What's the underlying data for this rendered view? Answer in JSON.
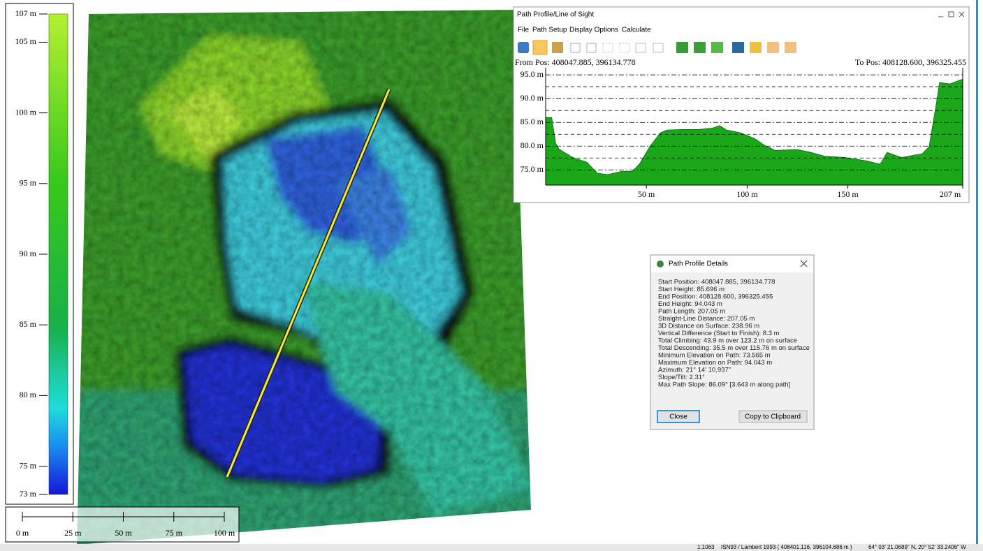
{
  "legend": {
    "lim": [
      73,
      107
    ],
    "ticks": [
      {
        "value": 107,
        "label": "107 m"
      },
      {
        "value": 105,
        "label": "105 m"
      },
      {
        "value": 100,
        "label": "100 m"
      },
      {
        "value": 95,
        "label": "95 m"
      },
      {
        "value": 90,
        "label": "90 m"
      },
      {
        "value": 85,
        "label": "85 m"
      },
      {
        "value": 80,
        "label": "80 m"
      },
      {
        "value": 75,
        "label": "75 m"
      },
      {
        "value": 73,
        "label": "73 m"
      }
    ]
  },
  "scale_bar": {
    "lim": [
      0,
      100
    ],
    "ticks": [
      {
        "value": 0,
        "label": "0 m"
      },
      {
        "value": 25,
        "label": "25 m"
      },
      {
        "value": 50,
        "label": "50 m"
      },
      {
        "value": 75,
        "label": "75 m"
      },
      {
        "value": 100,
        "label": "100 m"
      }
    ]
  },
  "profile_window": {
    "title": "Path Profile/Line of Sight",
    "menu": [
      "File",
      "Path Setup",
      "Display Options",
      "Calculate"
    ],
    "from": "From Pos: 408047.885, 396134.778",
    "to": "To Pos: 408128.600, 396325.455"
  },
  "chart_data": {
    "type": "area",
    "x": [
      0,
      3,
      5,
      6.6,
      13.5,
      20.5,
      25.7,
      30.9,
      37.8,
      43,
      46.5,
      51.7,
      56.9,
      60.3,
      67.3,
      75.9,
      82.9,
      86.3,
      89.8,
      96.7,
      103.7,
      108.9,
      114,
      124.5,
      131.4,
      138.3,
      148.7,
      159.1,
      166,
      169.5,
      176.5,
      186.9,
      190.3,
      193.8,
      195.5,
      200.7,
      207
    ],
    "values": [
      86.0,
      86.0,
      80.6,
      79.4,
      77.6,
      76.6,
      74.3,
      74.0,
      74.7,
      74.7,
      76.2,
      79.9,
      82.8,
      83.4,
      83.5,
      83.5,
      83.8,
      84.3,
      83.4,
      82.8,
      81.6,
      80.1,
      79.1,
      79.3,
      78.7,
      77.9,
      77.6,
      76.9,
      76.2,
      78.7,
      77.6,
      78.4,
      79.9,
      88.7,
      93.4,
      93.1,
      94.1
    ],
    "color": "#1aa81a",
    "xlim": [
      0,
      207
    ],
    "ylim": [
      71.8,
      96.5
    ],
    "xticks": [
      {
        "value": 50,
        "label": "50 m"
      },
      {
        "value": 100,
        "label": "100 m"
      },
      {
        "value": 150,
        "label": "150 m"
      },
      {
        "value": 207,
        "label": "207 m"
      }
    ],
    "yticks": [
      {
        "value": 75,
        "label": "75.0 m"
      },
      {
        "value": 80,
        "label": "80.0 m"
      },
      {
        "value": 85,
        "label": "85.0 m"
      },
      {
        "value": 90,
        "label": "90.0 m"
      },
      {
        "value": 95,
        "label": "95.0 m"
      }
    ],
    "minor_yticks": [
      77.5,
      82.5,
      87.5,
      92.5
    ],
    "grid": true
  },
  "details_dialog": {
    "title": "Path Profile Details",
    "lines": [
      "Start Position: 408047.885, 396134.778",
      "Start Height: 85.696 m",
      "End Position: 408128.600, 396325.455",
      "End Height: 94.043 m",
      "Path Length: 207.05 m",
      "Straight-Line Distance: 207.05 m",
      "3D Distance on Surface: 238.96 m",
      "Vertical Difference (Start to Finish): 8.3 m",
      "Total Climbing: 43.9 m over 123.2 m on surface",
      "Total Descending: 35.5 m over 115.76 m on surface",
      "Minimum Elevation on Path: 73.565 m",
      "Maximum Elevation on Path: 94.043 m",
      "Azimuth: 21° 14' 10.937\"",
      "Slope/Tilt: 2.31°",
      "Max Path Slope: 86.09° [3.643 m along path]"
    ],
    "buttons": [
      "Close",
      "Copy to Clipboard"
    ]
  },
  "status_bar": [
    "1:1063",
    "ISN93 / Lambert 1993 ( 408401.116, 396104.686 m )",
    "64° 03' 21.0689\" N, 20° 52' 33.2406\" W"
  ]
}
